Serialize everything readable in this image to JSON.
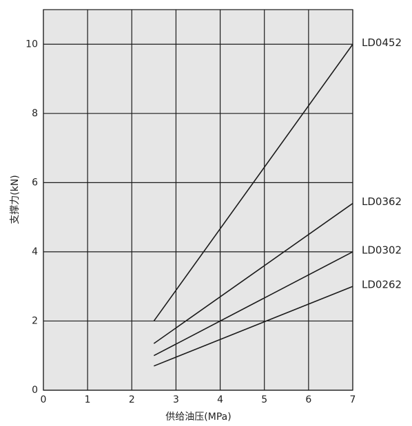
{
  "chart_data": {
    "type": "line",
    "x_label": "供给油压(MPa)",
    "y_label": "支撑力(kN)",
    "x": [
      2.5,
      7
    ],
    "series": [
      {
        "name": "LD0452",
        "color": "#1a1a1a",
        "values": [
          2,
          10
        ]
      },
      {
        "name": "LD0362",
        "color": "#1a1a1a",
        "values": [
          1.35,
          5.4
        ]
      },
      {
        "name": "LD0302",
        "color": "#1a1a1a",
        "values": [
          1.0,
          4.0
        ]
      },
      {
        "name": "LD0262",
        "color": "#1a1a1a",
        "values": [
          0.7,
          3.0
        ]
      }
    ],
    "xlim": [
      0,
      7
    ],
    "xticks": [
      0,
      1,
      2,
      3,
      4,
      5,
      6,
      7
    ],
    "ylim": [
      0,
      11
    ],
    "yticks": [
      0,
      2,
      4,
      6,
      8,
      10
    ],
    "grid": true,
    "background": "#e6e6e6"
  }
}
